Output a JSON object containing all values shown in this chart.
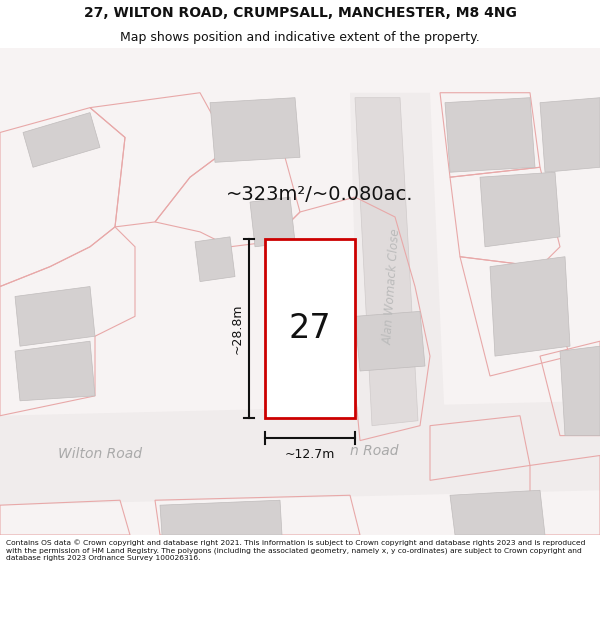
{
  "title_line1": "27, WILTON ROAD, CRUMPSALL, MANCHESTER, M8 4NG",
  "title_line2": "Map shows position and indicative extent of the property.",
  "footer_text": "Contains OS data © Crown copyright and database right 2021. This information is subject to Crown copyright and database rights 2023 and is reproduced with the permission of HM Land Registry. The polygons (including the associated geometry, namely x, y co-ordinates) are subject to Crown copyright and database rights 2023 Ordnance Survey 100026316.",
  "area_label": "~323m²/~0.080ac.",
  "width_label": "~12.7m",
  "height_label": "~28.8m",
  "plot_number": "27",
  "bg_color": "#ffffff",
  "map_bg": "#f7f3f3",
  "building_fill": "#d4d0d0",
  "building_edge": "#c0bcbc",
  "pink_outline": "#e8a8a8",
  "red_outline": "#cc0000",
  "road_label_color": "#aaaaaa",
  "title_color": "#111111",
  "footer_color": "#111111",
  "dim_color": "#111111",
  "road_fill": "#ffffff",
  "title_fontsize": 10.0,
  "subtitle_fontsize": 9.0,
  "footer_fontsize": 5.4,
  "area_fontsize": 14,
  "number_fontsize": 24,
  "dim_fontsize": 9,
  "road_fontsize": 10
}
